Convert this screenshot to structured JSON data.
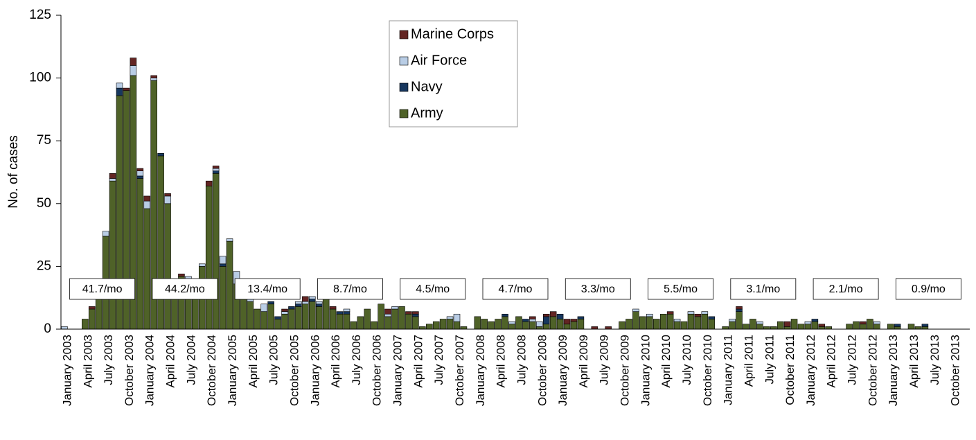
{
  "chart_data": {
    "type": "stacked-bar",
    "ylabel": "No. of cases",
    "ylim": [
      0,
      125
    ],
    "yticks": [
      0,
      25,
      50,
      75,
      100,
      125
    ],
    "legend_position": "top-center",
    "categories": [
      "January 2003",
      null,
      null,
      "April 2003",
      null,
      null,
      "July 2003",
      null,
      null,
      "October 2003",
      null,
      null,
      "January 2004",
      null,
      null,
      "April 2004",
      null,
      null,
      "July 2004",
      null,
      null,
      "October 2004",
      null,
      null,
      "January 2005",
      null,
      null,
      "April 2005",
      null,
      null,
      "July 2005",
      null,
      null,
      "October 2005",
      null,
      null,
      "January 2006",
      null,
      null,
      "April 2006",
      null,
      null,
      "July 2006",
      null,
      null,
      "October 2006",
      null,
      null,
      "January 2007",
      null,
      null,
      "April 2007",
      null,
      null,
      "July 2007",
      null,
      null,
      "October 2007",
      null,
      null,
      "January 2008",
      null,
      null,
      "April 2008",
      null,
      null,
      "July 2008",
      null,
      null,
      "October 2008",
      null,
      null,
      "January 2009",
      null,
      null,
      "April 2009",
      null,
      null,
      "July 2009",
      null,
      null,
      "October 2009",
      null,
      null,
      "January 2010",
      null,
      null,
      "April 2010",
      null,
      null,
      "July 2010",
      null,
      null,
      "October 2010",
      null,
      null,
      "January 2011",
      null,
      null,
      "April 2011",
      null,
      null,
      "July 2011",
      null,
      null,
      "October 2011",
      null,
      null,
      "January 2012",
      null,
      null,
      "April 2012",
      null,
      null,
      "July 2012",
      null,
      null,
      "October 2012",
      null,
      null,
      "January 2013",
      null,
      null,
      "April 2013",
      null,
      null,
      "July 2013",
      null,
      null,
      "October 2013",
      null,
      null
    ],
    "series": [
      {
        "name": "Army",
        "color": "#4f6228",
        "values": [
          0,
          0,
          0,
          4,
          8,
          19,
          37,
          59,
          93,
          95,
          101,
          60,
          48,
          99,
          69,
          50,
          15,
          21,
          20,
          15,
          25,
          57,
          62,
          25,
          35,
          18,
          15,
          11,
          8,
          7,
          10,
          4,
          6,
          8,
          9,
          10,
          11,
          9,
          12,
          8,
          6,
          6,
          3,
          5,
          8,
          3,
          10,
          5,
          8,
          9,
          6,
          5,
          1,
          2,
          3,
          4,
          4,
          3,
          1,
          0,
          5,
          4,
          3,
          4,
          5,
          2,
          5,
          3,
          3,
          1,
          2,
          5,
          4,
          2,
          3,
          4,
          0,
          0,
          0,
          0,
          0,
          3,
          4,
          7,
          5,
          5,
          4,
          6,
          6,
          3,
          3,
          6,
          5,
          6,
          4,
          0,
          1,
          3,
          7,
          2,
          4,
          2,
          1,
          1,
          3,
          1,
          4,
          2,
          2,
          3,
          1,
          1,
          0,
          0,
          2,
          3,
          2,
          4,
          2,
          0,
          2,
          1,
          0,
          2,
          1,
          1,
          0,
          0,
          0,
          0,
          0,
          0
        ]
      },
      {
        "name": "Navy",
        "color": "#17375e",
        "values": [
          0,
          0,
          0,
          0,
          0,
          0,
          0,
          0,
          3,
          0,
          0,
          1,
          0,
          0,
          1,
          0,
          0,
          0,
          0,
          0,
          0,
          0,
          1,
          1,
          0,
          0,
          0,
          0,
          0,
          0,
          1,
          1,
          0,
          1,
          1,
          0,
          1,
          1,
          0,
          0,
          1,
          1,
          0,
          0,
          0,
          0,
          0,
          0,
          0,
          0,
          0,
          1,
          0,
          0,
          0,
          0,
          0,
          0,
          0,
          0,
          0,
          0,
          0,
          0,
          1,
          0,
          0,
          1,
          0,
          0,
          3,
          0,
          2,
          0,
          0,
          1,
          0,
          0,
          0,
          0,
          0,
          0,
          0,
          0,
          0,
          0,
          0,
          0,
          0,
          0,
          0,
          0,
          0,
          0,
          1,
          0,
          0,
          0,
          1,
          0,
          0,
          0,
          0,
          0,
          0,
          0,
          0,
          0,
          0,
          1,
          0,
          0,
          0,
          0,
          0,
          0,
          0,
          0,
          0,
          0,
          0,
          1,
          0,
          0,
          0,
          1,
          0,
          0,
          0,
          0,
          0,
          0
        ]
      },
      {
        "name": "Air Force",
        "color": "#b9cde5",
        "values": [
          1,
          0,
          0,
          0,
          0,
          0,
          2,
          1,
          2,
          0,
          4,
          2,
          3,
          1,
          0,
          3,
          0,
          0,
          1,
          0,
          1,
          0,
          1,
          3,
          1,
          5,
          0,
          1,
          0,
          3,
          0,
          0,
          1,
          0,
          1,
          1,
          1,
          1,
          0,
          0,
          0,
          1,
          0,
          0,
          0,
          0,
          0,
          1,
          1,
          0,
          0,
          0,
          0,
          0,
          0,
          0,
          1,
          3,
          0,
          0,
          0,
          0,
          0,
          0,
          0,
          1,
          0,
          0,
          1,
          2,
          0,
          0,
          0,
          0,
          0,
          0,
          0,
          0,
          0,
          0,
          0,
          0,
          0,
          1,
          0,
          1,
          0,
          0,
          0,
          1,
          0,
          1,
          0,
          1,
          0,
          0,
          0,
          1,
          0,
          0,
          0,
          1,
          0,
          0,
          0,
          0,
          0,
          0,
          1,
          0,
          0,
          0,
          0,
          0,
          0,
          0,
          0,
          0,
          1,
          0,
          0,
          0,
          0,
          0,
          0,
          0,
          0,
          0,
          0,
          0,
          0,
          0
        ]
      },
      {
        "name": "Marine Corps",
        "color": "#632523",
        "values": [
          0,
          0,
          0,
          0,
          1,
          0,
          0,
          2,
          0,
          1,
          3,
          1,
          2,
          1,
          0,
          1,
          0,
          1,
          0,
          0,
          0,
          2,
          1,
          0,
          0,
          0,
          0,
          0,
          0,
          0,
          0,
          0,
          1,
          0,
          0,
          2,
          0,
          0,
          0,
          1,
          0,
          0,
          0,
          0,
          0,
          0,
          0,
          2,
          0,
          0,
          1,
          1,
          0,
          0,
          0,
          0,
          0,
          0,
          0,
          0,
          0,
          0,
          0,
          0,
          0,
          0,
          0,
          0,
          1,
          0,
          1,
          2,
          0,
          2,
          1,
          0,
          0,
          1,
          0,
          1,
          0,
          0,
          0,
          0,
          0,
          0,
          0,
          0,
          1,
          0,
          0,
          0,
          1,
          0,
          0,
          0,
          0,
          0,
          1,
          0,
          0,
          0,
          0,
          0,
          0,
          2,
          0,
          0,
          0,
          0,
          1,
          0,
          0,
          0,
          0,
          0,
          1,
          0,
          0,
          0,
          0,
          0,
          0,
          0,
          0,
          0,
          0,
          0,
          0,
          0,
          0,
          0
        ]
      }
    ],
    "annotations": [
      "41.7/mo",
      "44.2/mo",
      "13.4/mo",
      "8.7/mo",
      "4.5/mo",
      "4.7/mo",
      "3.3/mo",
      "5.5/mo",
      "3.1/mo",
      "2.1/mo",
      "0.9/mo"
    ]
  }
}
